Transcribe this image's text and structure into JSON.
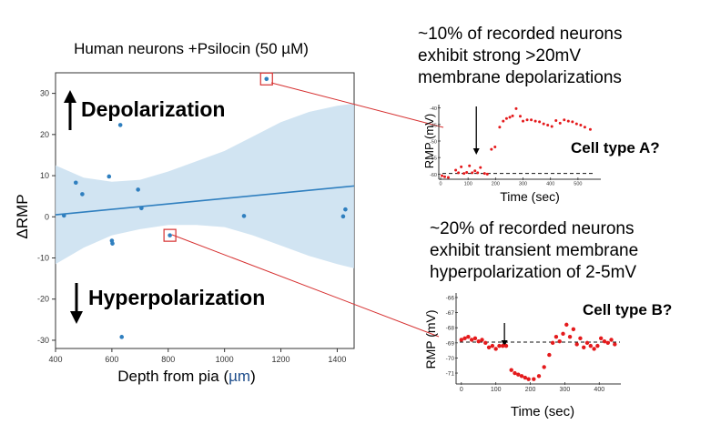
{
  "colors": {
    "point": "#2f7fbf",
    "regression": "#2f7fbf",
    "ci_band": "#c9dff0",
    "callout": "#d63030",
    "inset_point": "#e41a1c",
    "text": "#000000",
    "mu": "#1f4e8c"
  },
  "annotations": {
    "depolarization": "Depolarization",
    "hyperpolarization": "Hyperpolarization",
    "up_arrow_icon": "arrow-up-icon",
    "down_arrow_icon": "arrow-down-icon",
    "inset_a_caption": "~10% of recorded neurons exhibit strong >20mV membrane depolarizations",
    "inset_a_caption_lines": [
      "~10% of recorded neurons",
      "exhibit strong >20mV",
      "membrane depolarizations"
    ],
    "inset_a_label": "Cell type A?",
    "inset_b_caption": "~20% of recorded neurons exhibit transient membrane hyperpolarization of 2-5mV",
    "inset_b_caption_lines": [
      "~20% of recorded neurons",
      "exhibit transient membrane",
      "hyperpolarization of 2-5mV"
    ],
    "inset_b_label": "Cell type B?"
  },
  "chart_data": [
    {
      "type": "scatter",
      "title": "Human neurons +Psilocin (50 µM)",
      "xlabel_prefix": "Depth from pia (",
      "xlabel_unit": "µm",
      "xlabel_suffix": ")",
      "xlabel": "Depth from pia (µm)",
      "ylabel": "ΔRMP",
      "xlim": [
        400,
        1460
      ],
      "ylim": [
        -32,
        35
      ],
      "xticks": [
        400,
        600,
        800,
        1000,
        1200,
        1400
      ],
      "yticks": [
        -30,
        -20,
        -10,
        0,
        10,
        20,
        30
      ],
      "grid": false,
      "points": [
        {
          "x": 430,
          "y": 0.3
        },
        {
          "x": 472,
          "y": 8.3
        },
        {
          "x": 495,
          "y": 5.5
        },
        {
          "x": 590,
          "y": 9.8
        },
        {
          "x": 600,
          "y": -5.8
        },
        {
          "x": 602,
          "y": -6.5
        },
        {
          "x": 630,
          "y": 22.3
        },
        {
          "x": 635,
          "y": -29.2
        },
        {
          "x": 693,
          "y": 6.6
        },
        {
          "x": 705,
          "y": 2.1
        },
        {
          "x": 806,
          "y": -4.5
        },
        {
          "x": 1069,
          "y": 0.2
        },
        {
          "x": 1149,
          "y": 33.5
        },
        {
          "x": 1421,
          "y": 0.1
        },
        {
          "x": 1429,
          "y": 1.8
        }
      ],
      "highlighted_points": [
        {
          "x": 1149,
          "y": 33.5,
          "links_to": "inset_a"
        },
        {
          "x": 806,
          "y": -4.5,
          "links_to": "inset_b"
        }
      ],
      "regression": {
        "x": [
          400,
          1460
        ],
        "y": [
          0.5,
          7.5
        ]
      },
      "confidence_band": {
        "x": [
          400,
          500,
          600,
          700,
          800,
          900,
          1000,
          1100,
          1200,
          1300,
          1400,
          1460
        ],
        "lower": [
          -11.5,
          -7.5,
          -4.5,
          -3.0,
          -2.0,
          -2.0,
          -2.5,
          -4.5,
          -7.0,
          -9.5,
          -11.5,
          -12.5
        ],
        "upper": [
          12.5,
          9.5,
          8.5,
          9.0,
          11.0,
          13.5,
          16.0,
          19.5,
          23.0,
          25.5,
          27.0,
          27.5
        ]
      }
    },
    {
      "id": "inset_a",
      "type": "scatter",
      "title": "",
      "xlabel": "Time (sec)",
      "ylabel": "RMP (mV)",
      "xlim": [
        0,
        580
      ],
      "ylim": [
        -61,
        -39
      ],
      "xticks": [
        0,
        100,
        200,
        300,
        400,
        500
      ],
      "yticks": [
        -40,
        -45,
        -50,
        -55,
        -60
      ],
      "baseline": -59.8,
      "stimulus_time": 130,
      "points": [
        {
          "x": 5,
          "y": -60.5
        },
        {
          "x": 15,
          "y": -60.8
        },
        {
          "x": 28,
          "y": -61.0
        },
        {
          "x": 55,
          "y": -58.8
        },
        {
          "x": 65,
          "y": -59.6
        },
        {
          "x": 75,
          "y": -57.8
        },
        {
          "x": 85,
          "y": -59.8
        },
        {
          "x": 95,
          "y": -59.5
        },
        {
          "x": 105,
          "y": -57.5
        },
        {
          "x": 115,
          "y": -59.6
        },
        {
          "x": 125,
          "y": -59.0
        },
        {
          "x": 135,
          "y": -59.6
        },
        {
          "x": 145,
          "y": -58.0
        },
        {
          "x": 160,
          "y": -59.8
        },
        {
          "x": 170,
          "y": -60.0
        },
        {
          "x": 185,
          "y": -52.5
        },
        {
          "x": 198,
          "y": -51.8
        },
        {
          "x": 215,
          "y": -45.8
        },
        {
          "x": 228,
          "y": -44.0
        },
        {
          "x": 240,
          "y": -43.2
        },
        {
          "x": 252,
          "y": -42.8
        },
        {
          "x": 262,
          "y": -42.4
        },
        {
          "x": 275,
          "y": -40.2
        },
        {
          "x": 290,
          "y": -42.5
        },
        {
          "x": 300,
          "y": -44.0
        },
        {
          "x": 315,
          "y": -43.6
        },
        {
          "x": 330,
          "y": -43.6
        },
        {
          "x": 345,
          "y": -44.0
        },
        {
          "x": 360,
          "y": -44.2
        },
        {
          "x": 375,
          "y": -44.8
        },
        {
          "x": 390,
          "y": -45.2
        },
        {
          "x": 405,
          "y": -45.6
        },
        {
          "x": 420,
          "y": -43.8
        },
        {
          "x": 435,
          "y": -44.6
        },
        {
          "x": 450,
          "y": -43.6
        },
        {
          "x": 465,
          "y": -44.0
        },
        {
          "x": 480,
          "y": -44.2
        },
        {
          "x": 495,
          "y": -44.8
        },
        {
          "x": 510,
          "y": -45.2
        },
        {
          "x": 525,
          "y": -45.8
        },
        {
          "x": 545,
          "y": -46.5
        }
      ]
    },
    {
      "id": "inset_b",
      "type": "scatter",
      "title": "",
      "xlabel": "Time (sec)",
      "ylabel": "RMP (mV)",
      "xlim": [
        -10,
        460
      ],
      "ylim": [
        -71.6,
        -65.7
      ],
      "xticks": [
        0,
        100,
        200,
        300,
        400
      ],
      "yticks": [
        -66,
        -67,
        -68,
        -69,
        -70,
        -71
      ],
      "baseline": -68.95,
      "stimulus_time": 125,
      "points": [
        {
          "x": 0,
          "y": -68.8
        },
        {
          "x": 10,
          "y": -68.7
        },
        {
          "x": 20,
          "y": -68.6
        },
        {
          "x": 30,
          "y": -68.8
        },
        {
          "x": 40,
          "y": -68.7
        },
        {
          "x": 50,
          "y": -68.9
        },
        {
          "x": 60,
          "y": -68.8
        },
        {
          "x": 70,
          "y": -69.0
        },
        {
          "x": 80,
          "y": -69.3
        },
        {
          "x": 90,
          "y": -69.2
        },
        {
          "x": 100,
          "y": -69.4
        },
        {
          "x": 110,
          "y": -69.2
        },
        {
          "x": 120,
          "y": -69.2
        },
        {
          "x": 130,
          "y": -69.2
        },
        {
          "x": 145,
          "y": -70.8
        },
        {
          "x": 155,
          "y": -71.0
        },
        {
          "x": 165,
          "y": -71.1
        },
        {
          "x": 175,
          "y": -71.2
        },
        {
          "x": 185,
          "y": -71.3
        },
        {
          "x": 195,
          "y": -71.4
        },
        {
          "x": 210,
          "y": -71.4
        },
        {
          "x": 225,
          "y": -71.2
        },
        {
          "x": 240,
          "y": -70.6
        },
        {
          "x": 255,
          "y": -69.8
        },
        {
          "x": 265,
          "y": -69.0
        },
        {
          "x": 275,
          "y": -68.6
        },
        {
          "x": 285,
          "y": -68.9
        },
        {
          "x": 295,
          "y": -68.4
        },
        {
          "x": 305,
          "y": -67.8
        },
        {
          "x": 315,
          "y": -68.6
        },
        {
          "x": 325,
          "y": -68.1
        },
        {
          "x": 335,
          "y": -69.1
        },
        {
          "x": 345,
          "y": -68.7
        },
        {
          "x": 355,
          "y": -69.3
        },
        {
          "x": 365,
          "y": -69.0
        },
        {
          "x": 375,
          "y": -69.2
        },
        {
          "x": 385,
          "y": -69.4
        },
        {
          "x": 395,
          "y": -69.2
        },
        {
          "x": 405,
          "y": -68.7
        },
        {
          "x": 415,
          "y": -68.9
        },
        {
          "x": 425,
          "y": -69.0
        },
        {
          "x": 435,
          "y": -68.8
        },
        {
          "x": 445,
          "y": -69.1
        }
      ]
    }
  ]
}
